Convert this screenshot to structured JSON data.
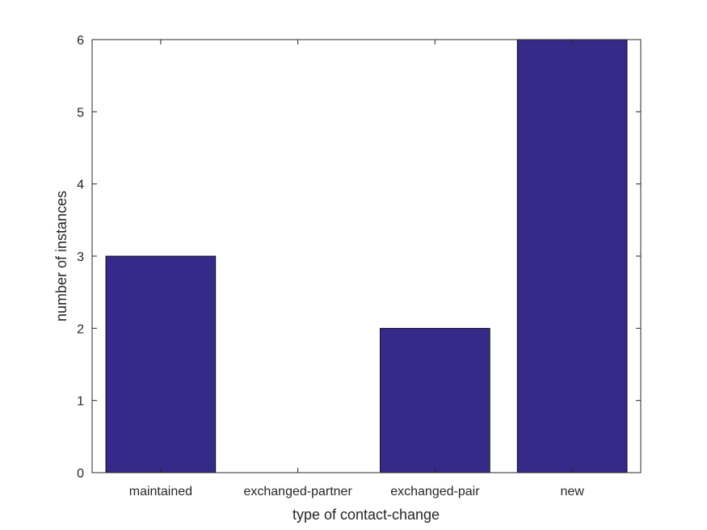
{
  "chart_data": {
    "type": "bar",
    "categories": [
      "maintained",
      "exchanged-partner",
      "exchanged-pair",
      "new"
    ],
    "values": [
      3,
      0,
      2,
      6
    ],
    "title": "",
    "xlabel": "type of contact-change",
    "ylabel": "number of instances",
    "ylim": [
      0,
      6
    ],
    "yticks": [
      0,
      1,
      2,
      3,
      4,
      5,
      6
    ],
    "grid": false,
    "bar_color": "#352a87"
  }
}
